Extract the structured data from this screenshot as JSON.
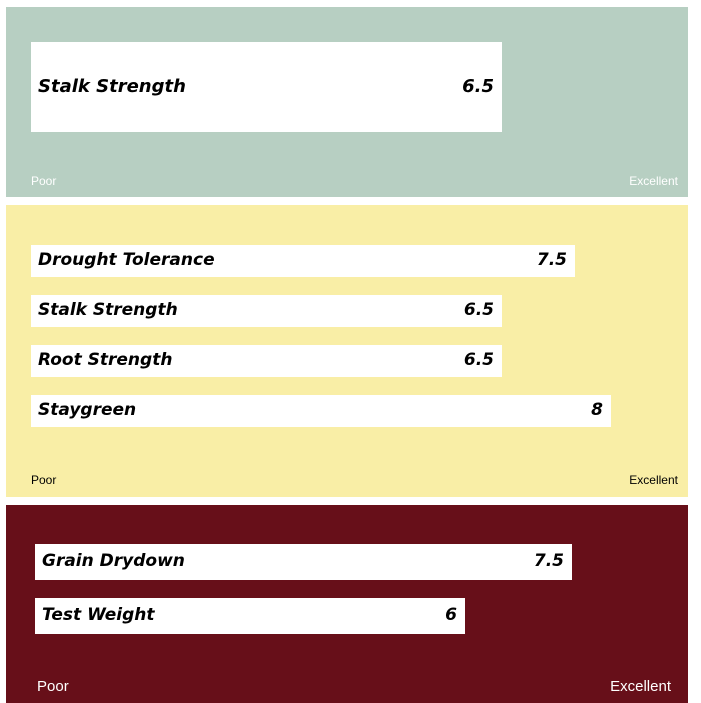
{
  "colors": {
    "panel1_bg": "#b7cfc2",
    "panel2_bg": "#f9eea6",
    "panel3_bg": "#670f19",
    "bar": "#ffffff"
  },
  "chart_data": [
    {
      "type": "bar",
      "orientation": "horizontal",
      "categories": [
        "Stalk Strength"
      ],
      "values": [
        6.5
      ],
      "data_labels": [
        "6.5"
      ],
      "scale_low_label": "Poor",
      "scale_high_label": "Excellent"
    },
    {
      "type": "bar",
      "orientation": "horizontal",
      "categories": [
        "Drought Tolerance",
        "Stalk Strength",
        "Root Strength",
        "Staygreen"
      ],
      "values": [
        7.5,
        6.5,
        6.5,
        8
      ],
      "data_labels": [
        "7.5",
        "6.5",
        "6.5",
        "8"
      ],
      "scale_low_label": "Poor",
      "scale_high_label": "Excellent"
    },
    {
      "type": "bar",
      "orientation": "horizontal",
      "categories": [
        "Grain Drydown",
        "Test Weight"
      ],
      "values": [
        7.5,
        6
      ],
      "data_labels": [
        "7.5",
        "6"
      ],
      "scale_low_label": "Poor",
      "scale_high_label": "Excellent"
    }
  ]
}
